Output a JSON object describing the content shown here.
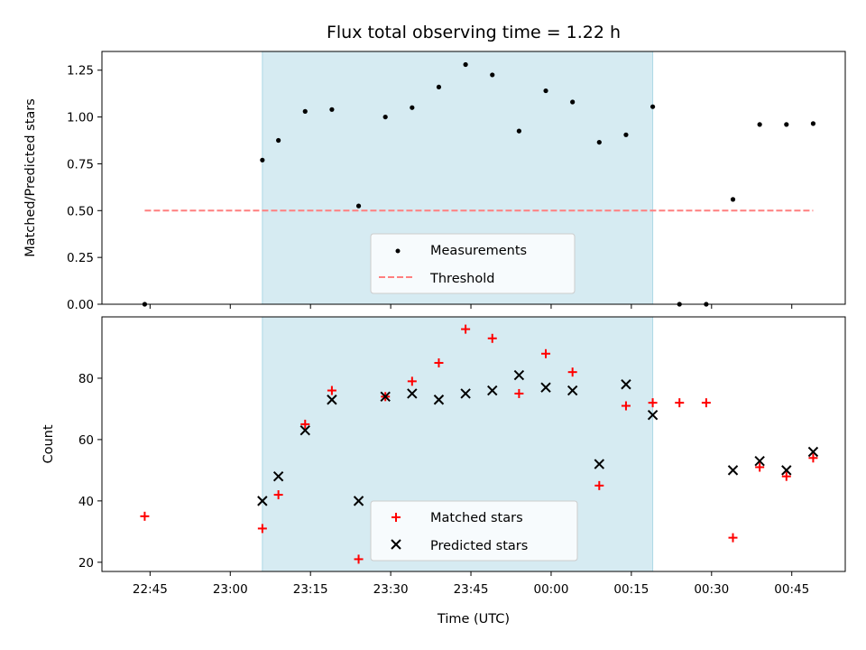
{
  "title": "Flux total observing time = 1.22 h",
  "xlabel": "Time (UTC)",
  "colors": {
    "shade": "#add8e6",
    "measurement": "#000000",
    "threshold": "#ff7f7f",
    "matched": "#ff0000",
    "predicted": "#000000"
  },
  "chart_data": [
    {
      "type": "scatter",
      "ylabel": "Matched/Predicted stars",
      "xlim": [
        "22:36",
        "00:55"
      ],
      "ylim": [
        0,
        1.35
      ],
      "x_ticks": [
        "22:45",
        "23:00",
        "23:15",
        "23:30",
        "23:45",
        "00:00",
        "00:15",
        "00:30",
        "00:45"
      ],
      "y_ticks": [
        "0.00",
        "0.25",
        "0.50",
        "0.75",
        "1.00",
        "1.25"
      ],
      "shaded_span": [
        "23:06",
        "00:19"
      ],
      "legend": {
        "placement": "lower-center"
      },
      "series": [
        {
          "name": "Measurements",
          "marker": "dot",
          "points": [
            [
              "22:44",
              0.0
            ],
            [
              "23:06",
              0.77
            ],
            [
              "23:09",
              0.875
            ],
            [
              "23:14",
              1.03
            ],
            [
              "23:19",
              1.04
            ],
            [
              "23:24",
              0.525
            ],
            [
              "23:29",
              1.0
            ],
            [
              "23:34",
              1.05
            ],
            [
              "23:39",
              1.16
            ],
            [
              "23:44",
              1.28
            ],
            [
              "23:49",
              1.225
            ],
            [
              "23:54",
              0.925
            ],
            [
              "23:59",
              1.14
            ],
            [
              "00:04",
              1.08
            ],
            [
              "00:09",
              0.865
            ],
            [
              "00:14",
              0.905
            ],
            [
              "00:19",
              1.055
            ],
            [
              "00:24",
              0.0
            ],
            [
              "00:29",
              0.0
            ],
            [
              "00:34",
              0.56
            ],
            [
              "00:39",
              0.96
            ],
            [
              "00:44",
              0.96
            ],
            [
              "00:49",
              0.965
            ]
          ]
        },
        {
          "name": "Threshold",
          "marker": "dashed-line",
          "points": [
            [
              "22:44",
              0.5
            ],
            [
              "00:49",
              0.5
            ]
          ]
        }
      ]
    },
    {
      "type": "scatter",
      "ylabel": "Count",
      "xlim": [
        "22:36",
        "00:55"
      ],
      "ylim": [
        17,
        100
      ],
      "x_ticks": [
        "22:45",
        "23:00",
        "23:15",
        "23:30",
        "23:45",
        "00:00",
        "00:15",
        "00:30",
        "00:45"
      ],
      "y_ticks": [
        "20",
        "40",
        "60",
        "80"
      ],
      "shaded_span": [
        "23:06",
        "00:19"
      ],
      "legend": {
        "placement": "lower-center"
      },
      "series": [
        {
          "name": "Matched stars",
          "marker": "plus",
          "points": [
            [
              "22:44",
              35
            ],
            [
              "23:06",
              31
            ],
            [
              "23:09",
              42
            ],
            [
              "23:14",
              65
            ],
            [
              "23:19",
              76
            ],
            [
              "23:24",
              21
            ],
            [
              "23:29",
              74
            ],
            [
              "23:34",
              79
            ],
            [
              "23:39",
              85
            ],
            [
              "23:44",
              96
            ],
            [
              "23:49",
              93
            ],
            [
              "23:54",
              75
            ],
            [
              "23:59",
              88
            ],
            [
              "00:04",
              82
            ],
            [
              "00:09",
              45
            ],
            [
              "00:14",
              71
            ],
            [
              "00:19",
              72
            ],
            [
              "00:24",
              72
            ],
            [
              "00:29",
              72
            ],
            [
              "00:34",
              28
            ],
            [
              "00:39",
              51
            ],
            [
              "00:44",
              48
            ],
            [
              "00:49",
              54
            ]
          ]
        },
        {
          "name": "Predicted stars",
          "marker": "x",
          "points": [
            [
              "23:06",
              40
            ],
            [
              "23:09",
              48
            ],
            [
              "23:14",
              63
            ],
            [
              "23:19",
              73
            ],
            [
              "23:24",
              40
            ],
            [
              "23:29",
              74
            ],
            [
              "23:34",
              75
            ],
            [
              "23:39",
              73
            ],
            [
              "23:44",
              75
            ],
            [
              "23:49",
              76
            ],
            [
              "23:54",
              81
            ],
            [
              "23:59",
              77
            ],
            [
              "00:04",
              76
            ],
            [
              "00:09",
              52
            ],
            [
              "00:14",
              78
            ],
            [
              "00:19",
              68
            ],
            [
              "00:34",
              50
            ],
            [
              "00:39",
              53
            ],
            [
              "00:44",
              50
            ],
            [
              "00:49",
              56
            ]
          ]
        }
      ]
    }
  ]
}
